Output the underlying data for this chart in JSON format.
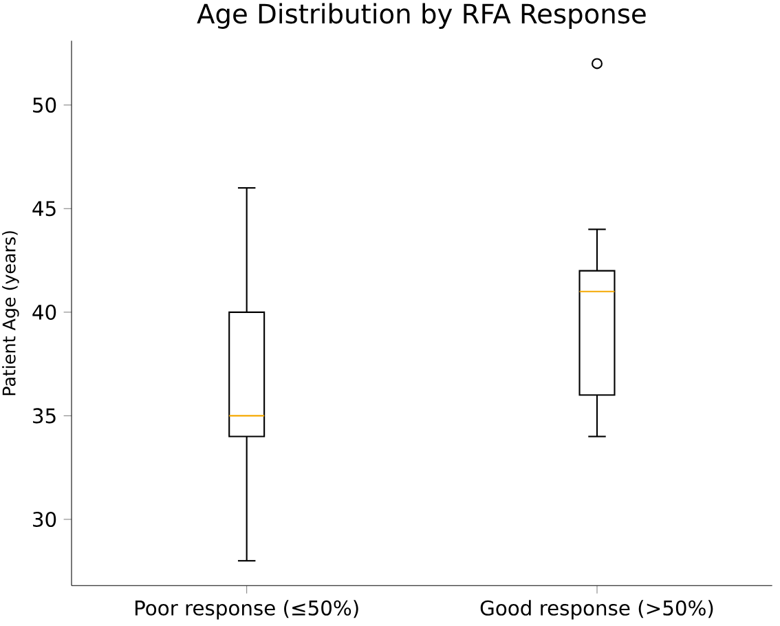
{
  "chart_data": {
    "type": "box",
    "title": "Age Distribution by RFA Response",
    "ylabel": "Patient Age (years)",
    "categories": [
      "Poor response (≤50%)",
      "Good response (>50%)"
    ],
    "series": [
      {
        "color": "#000000",
        "boxes": [
          {
            "low": 28,
            "q1": 34,
            "median": 35,
            "q3": 40,
            "high": 46
          },
          {
            "low": 34,
            "q1": 36,
            "median": 41,
            "q3": 42,
            "high": 44,
            "outliers": [
              52
            ]
          }
        ]
      }
    ],
    "ylim": [
      26.8,
      53.1
    ],
    "yticks": [
      30,
      35,
      40,
      45,
      50
    ],
    "grid": false
  }
}
